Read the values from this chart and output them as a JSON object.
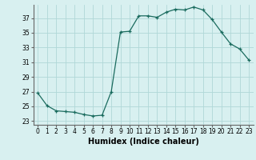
{
  "x": [
    0,
    1,
    2,
    3,
    4,
    5,
    6,
    7,
    8,
    9,
    10,
    11,
    12,
    13,
    14,
    15,
    16,
    17,
    18,
    19,
    20,
    21,
    22,
    23
  ],
  "y": [
    26.8,
    25.1,
    24.4,
    24.3,
    24.2,
    23.9,
    23.7,
    23.8,
    27.0,
    35.1,
    35.2,
    37.3,
    37.3,
    37.1,
    37.8,
    38.2,
    38.1,
    38.5,
    38.1,
    36.8,
    35.1,
    33.5,
    32.8,
    31.3
  ],
  "line_color": "#1a6b5e",
  "marker": "+",
  "marker_size": 3,
  "bg_color": "#d8f0f0",
  "grid_color": "#b0d8d8",
  "xlabel": "Humidex (Indice chaleur)",
  "xlim": [
    -0.5,
    23.5
  ],
  "ylim": [
    22.5,
    38.8
  ],
  "yticks": [
    23,
    25,
    27,
    29,
    31,
    33,
    35,
    37
  ],
  "xticks": [
    0,
    1,
    2,
    3,
    4,
    5,
    6,
    7,
    8,
    9,
    10,
    11,
    12,
    13,
    14,
    15,
    16,
    17,
    18,
    19,
    20,
    21,
    22,
    23
  ],
  "xtick_labels": [
    "0",
    "1",
    "2",
    "3",
    "4",
    "5",
    "6",
    "7",
    "8",
    "9",
    "10",
    "11",
    "12",
    "13",
    "14",
    "15",
    "16",
    "17",
    "18",
    "19",
    "20",
    "21",
    "22",
    "23"
  ],
  "tick_fontsize": 5.5,
  "label_fontsize": 7.0
}
